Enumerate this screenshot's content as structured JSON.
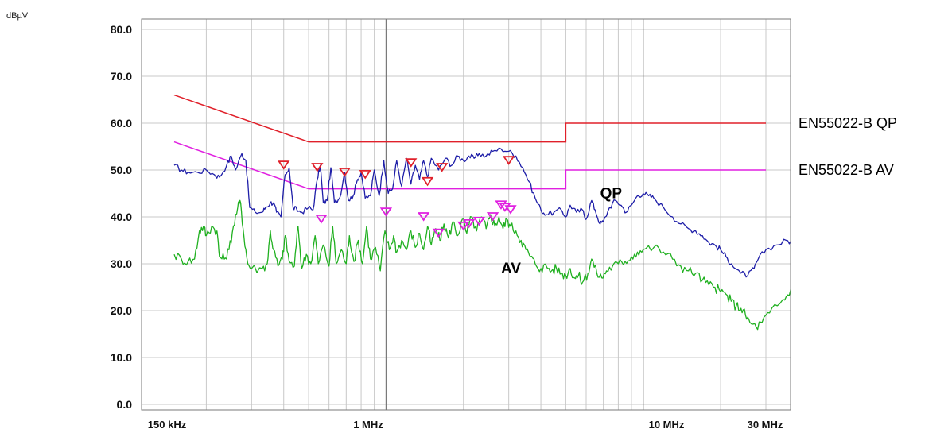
{
  "chart_data": {
    "type": "line",
    "y_unit": "dBµV",
    "x_scale": "log",
    "xlim_hz": [
      150000,
      30000000
    ],
    "ylim": [
      0,
      80
    ],
    "y_ticks": [
      {
        "value": 80,
        "label": "80.0"
      },
      {
        "value": 70,
        "label": "70.0"
      },
      {
        "value": 60,
        "label": "60.0"
      },
      {
        "value": 50,
        "label": "50.0"
      },
      {
        "value": 40,
        "label": "40.0"
      },
      {
        "value": 30,
        "label": "30.0"
      },
      {
        "value": 20,
        "label": "20.0"
      },
      {
        "value": 10,
        "label": "10.0"
      },
      {
        "value": 0,
        "label": "0.0"
      }
    ],
    "x_tick_labels": [
      {
        "value": 150000,
        "label": "150 kHz"
      },
      {
        "value": 1000000,
        "label": "1 MHz"
      },
      {
        "value": 10000000,
        "label": "10 MHz"
      },
      {
        "value": 30000000,
        "label": "30 MHz"
      }
    ],
    "grid": true,
    "limit_lines": [
      {
        "label": "EN55022-B QP",
        "color": "#e0202a",
        "points": [
          [
            150000,
            66
          ],
          [
            500000,
            56
          ],
          [
            5000000,
            56
          ],
          [
            5000000,
            60
          ],
          [
            30000000,
            60
          ]
        ]
      },
      {
        "label": "EN55022-B AV",
        "color": "#e020e0",
        "points": [
          [
            150000,
            56
          ],
          [
            500000,
            46
          ],
          [
            5000000,
            46
          ],
          [
            5000000,
            50
          ],
          [
            30000000,
            50
          ]
        ]
      }
    ],
    "series": [
      {
        "name": "QP",
        "color": "#1e1ea8",
        "points": [
          [
            150000,
            51
          ],
          [
            160000,
            50
          ],
          [
            170000,
            49.5
          ],
          [
            185000,
            49.5
          ],
          [
            200000,
            50
          ],
          [
            215000,
            49
          ],
          [
            225000,
            48.5
          ],
          [
            240000,
            51
          ],
          [
            250000,
            53
          ],
          [
            260000,
            50
          ],
          [
            275000,
            53.5
          ],
          [
            285000,
            52
          ],
          [
            295000,
            42
          ],
          [
            310000,
            41
          ],
          [
            330000,
            41
          ],
          [
            340000,
            42
          ],
          [
            355000,
            43
          ],
          [
            365000,
            43
          ],
          [
            375000,
            41
          ],
          [
            390000,
            40
          ],
          [
            405000,
            49
          ],
          [
            420000,
            50.5
          ],
          [
            435000,
            42
          ],
          [
            450000,
            41.5
          ],
          [
            470000,
            41
          ],
          [
            500000,
            42
          ],
          [
            520000,
            41.5
          ],
          [
            540000,
            48
          ],
          [
            555000,
            51
          ],
          [
            570000,
            43
          ],
          [
            590000,
            43.5
          ],
          [
            610000,
            50.5
          ],
          [
            630000,
            43
          ],
          [
            660000,
            44
          ],
          [
            690000,
            49.5
          ],
          [
            715000,
            43.5
          ],
          [
            745000,
            44.5
          ],
          [
            775000,
            48
          ],
          [
            800000,
            49.5
          ],
          [
            830000,
            44
          ],
          [
            870000,
            44.5
          ],
          [
            900000,
            50
          ],
          [
            940000,
            44.5
          ],
          [
            980000,
            52
          ],
          [
            1020000,
            45
          ],
          [
            1060000,
            46
          ],
          [
            1100000,
            52
          ],
          [
            1150000,
            46.5
          ],
          [
            1200000,
            52.5
          ],
          [
            1250000,
            47
          ],
          [
            1300000,
            51
          ],
          [
            1350000,
            48
          ],
          [
            1400000,
            52
          ],
          [
            1450000,
            48.5
          ],
          [
            1500000,
            52.5
          ],
          [
            1600000,
            50
          ],
          [
            1700000,
            52.5
          ],
          [
            1800000,
            51
          ],
          [
            1900000,
            53
          ],
          [
            2000000,
            52
          ],
          [
            2100000,
            53
          ],
          [
            2200000,
            52.5
          ],
          [
            2300000,
            53.5
          ],
          [
            2450000,
            53
          ],
          [
            2600000,
            54
          ],
          [
            2800000,
            54.5
          ],
          [
            3000000,
            54
          ],
          [
            3200000,
            53
          ],
          [
            3400000,
            50.5
          ],
          [
            3600000,
            47.5
          ],
          [
            3800000,
            44
          ],
          [
            4000000,
            41.5
          ],
          [
            4200000,
            40.5
          ],
          [
            4500000,
            41
          ],
          [
            4800000,
            41.5
          ],
          [
            5000000,
            40
          ],
          [
            5200000,
            42.5
          ],
          [
            5500000,
            41
          ],
          [
            5800000,
            41.5
          ],
          [
            6000000,
            39.5
          ],
          [
            6300000,
            43.5
          ],
          [
            6500000,
            41.5
          ],
          [
            6800000,
            38.5
          ],
          [
            7000000,
            39
          ],
          [
            7400000,
            42
          ],
          [
            7800000,
            43.5
          ],
          [
            8200000,
            42.5
          ],
          [
            8600000,
            41
          ],
          [
            9000000,
            42.5
          ],
          [
            9500000,
            44.5
          ],
          [
            10000000,
            45
          ],
          [
            10500000,
            44.5
          ],
          [
            11000000,
            44
          ],
          [
            12000000,
            42
          ],
          [
            13000000,
            40
          ],
          [
            14000000,
            38.5
          ],
          [
            15000000,
            37.5
          ],
          [
            16000000,
            37
          ],
          [
            17000000,
            36
          ],
          [
            18000000,
            34.5
          ],
          [
            19000000,
            34
          ],
          [
            20000000,
            33
          ],
          [
            21000000,
            31.5
          ],
          [
            22000000,
            30
          ],
          [
            24000000,
            28
          ],
          [
            25500000,
            27.5
          ],
          [
            27000000,
            29
          ],
          [
            28000000,
            31
          ],
          [
            30000000,
            33
          ],
          [
            33000000,
            34
          ],
          [
            36000000,
            35
          ],
          [
            38000000,
            34.5
          ]
        ]
      },
      {
        "name": "AV",
        "color": "#20b020",
        "points": [
          [
            150000,
            32
          ],
          [
            160000,
            31
          ],
          [
            170000,
            30.5
          ],
          [
            180000,
            31
          ],
          [
            188000,
            37
          ],
          [
            195000,
            38
          ],
          [
            200000,
            36
          ],
          [
            210000,
            38
          ],
          [
            220000,
            37
          ],
          [
            225000,
            31.5
          ],
          [
            235000,
            31
          ],
          [
            245000,
            33
          ],
          [
            255000,
            38
          ],
          [
            265000,
            42
          ],
          [
            272000,
            43
          ],
          [
            280000,
            36
          ],
          [
            290000,
            30
          ],
          [
            300000,
            29
          ],
          [
            330000,
            29
          ],
          [
            345000,
            30
          ],
          [
            355000,
            37
          ],
          [
            365000,
            33
          ],
          [
            380000,
            29.5
          ],
          [
            395000,
            31
          ],
          [
            405000,
            36
          ],
          [
            420000,
            30.5
          ],
          [
            440000,
            29.5
          ],
          [
            455000,
            38
          ],
          [
            470000,
            29
          ],
          [
            490000,
            32
          ],
          [
            510000,
            30
          ],
          [
            530000,
            36
          ],
          [
            545000,
            30
          ],
          [
            570000,
            34
          ],
          [
            600000,
            29.5
          ],
          [
            620000,
            38
          ],
          [
            640000,
            30
          ],
          [
            670000,
            33
          ],
          [
            700000,
            30
          ],
          [
            720000,
            36
          ],
          [
            750000,
            30.5
          ],
          [
            780000,
            35
          ],
          [
            810000,
            30
          ],
          [
            840000,
            38
          ],
          [
            870000,
            31
          ],
          [
            910000,
            33.5
          ],
          [
            950000,
            28.5
          ],
          [
            990000,
            37
          ],
          [
            1030000,
            33
          ],
          [
            1070000,
            36
          ],
          [
            1100000,
            32.5
          ],
          [
            1150000,
            35
          ],
          [
            1200000,
            33
          ],
          [
            1250000,
            37
          ],
          [
            1300000,
            33.5
          ],
          [
            1350000,
            36.5
          ],
          [
            1400000,
            33
          ],
          [
            1450000,
            38
          ],
          [
            1500000,
            34
          ],
          [
            1560000,
            37.5
          ],
          [
            1620000,
            35
          ],
          [
            1680000,
            38.5
          ],
          [
            1750000,
            35.5
          ],
          [
            1820000,
            39
          ],
          [
            1900000,
            36
          ],
          [
            1980000,
            39.5
          ],
          [
            2060000,
            36.5
          ],
          [
            2150000,
            40
          ],
          [
            2250000,
            37
          ],
          [
            2350000,
            40
          ],
          [
            2450000,
            37.5
          ],
          [
            2550000,
            40.5
          ],
          [
            2650000,
            38
          ],
          [
            2750000,
            40
          ],
          [
            2850000,
            37.5
          ],
          [
            2950000,
            39.5
          ],
          [
            3050000,
            38
          ],
          [
            3200000,
            37
          ],
          [
            3350000,
            35
          ],
          [
            3500000,
            33
          ],
          [
            3650000,
            31.5
          ],
          [
            3800000,
            30
          ],
          [
            4000000,
            29
          ],
          [
            4200000,
            29.5
          ],
          [
            4400000,
            28.5
          ],
          [
            4600000,
            29
          ],
          [
            4800000,
            28
          ],
          [
            5000000,
            27.5
          ],
          [
            5200000,
            29
          ],
          [
            5400000,
            27
          ],
          [
            5600000,
            27.5
          ],
          [
            5800000,
            26
          ],
          [
            6100000,
            28
          ],
          [
            6300000,
            31
          ],
          [
            6600000,
            28
          ],
          [
            6900000,
            27
          ],
          [
            7200000,
            28.5
          ],
          [
            7600000,
            29.5
          ],
          [
            8000000,
            30
          ],
          [
            8500000,
            30.5
          ],
          [
            9000000,
            31.5
          ],
          [
            9500000,
            32.5
          ],
          [
            10000000,
            33
          ],
          [
            11000000,
            33.5
          ],
          [
            12000000,
            32.5
          ],
          [
            13000000,
            31
          ],
          [
            14000000,
            29.5
          ],
          [
            15000000,
            28.5
          ],
          [
            16000000,
            28
          ],
          [
            17000000,
            26.5
          ],
          [
            18000000,
            25.5
          ],
          [
            19000000,
            25
          ],
          [
            20000000,
            24
          ],
          [
            21000000,
            23.5
          ],
          [
            22000000,
            22
          ],
          [
            23000000,
            21
          ],
          [
            24000000,
            20.5
          ],
          [
            25000000,
            19
          ],
          [
            26000000,
            17.5
          ],
          [
            27500000,
            16.5
          ],
          [
            29000000,
            17.5
          ],
          [
            31000000,
            19.5
          ],
          [
            34000000,
            21.5
          ],
          [
            36000000,
            23
          ],
          [
            38000000,
            24.5
          ]
        ]
      }
    ],
    "qp_markers": [
      [
        400000,
        51
      ],
      [
        540000,
        50.5
      ],
      [
        690000,
        49.5
      ],
      [
        830000,
        49
      ],
      [
        1250000,
        51.5
      ],
      [
        1450000,
        47.5
      ],
      [
        1650000,
        50.5
      ],
      [
        3000000,
        52
      ]
    ],
    "av_markers": [
      [
        560000,
        39.5
      ],
      [
        1000000,
        41
      ],
      [
        1400000,
        40
      ],
      [
        1600000,
        36.5
      ],
      [
        2000000,
        38
      ],
      [
        2100000,
        38.5
      ],
      [
        2300000,
        39
      ],
      [
        2600000,
        40
      ],
      [
        2800000,
        42.5
      ],
      [
        2900000,
        42
      ],
      [
        3050000,
        41.5
      ]
    ],
    "annotations": [
      {
        "text": "QP",
        "x": 6800000,
        "y": 44
      },
      {
        "text": "AV",
        "x": 2800000,
        "y": 28
      }
    ]
  }
}
